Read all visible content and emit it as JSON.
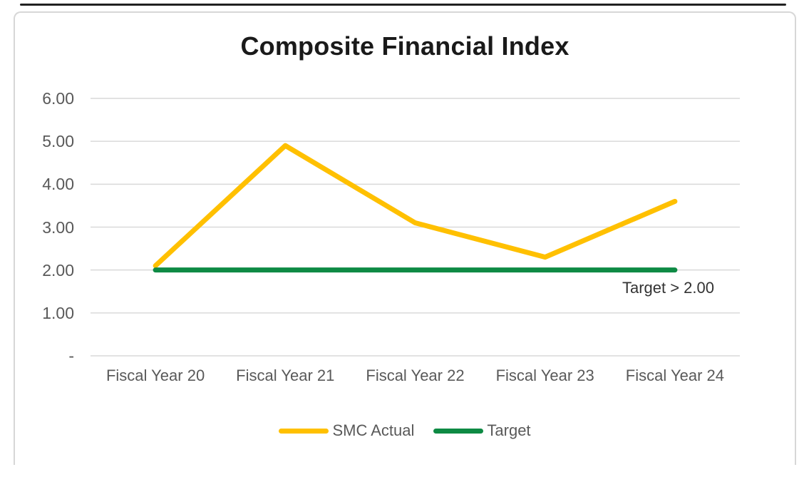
{
  "chart": {
    "title": "Composite Financial Index",
    "annotation": "Target > 2.00",
    "colors": {
      "smc_actual": "#FFC000",
      "target": "#0E8A44",
      "gridline": "#D9D9D9",
      "axis_label": "#595959",
      "title_text": "#1A1A1A"
    }
  },
  "chart_data": {
    "type": "line",
    "title": "Composite Financial Index",
    "categories": [
      "Fiscal Year 20",
      "Fiscal Year 21",
      "Fiscal Year 22",
      "Fiscal Year 23",
      "Fiscal Year 24"
    ],
    "series": [
      {
        "name": "SMC Actual",
        "color": "#FFC000",
        "values": [
          2.1,
          4.9,
          3.1,
          2.3,
          3.6
        ]
      },
      {
        "name": "Target",
        "color": "#0E8A44",
        "values": [
          2.0,
          2.0,
          2.0,
          2.0,
          2.0
        ]
      }
    ],
    "xlabel": "",
    "ylabel": "",
    "ylim": [
      0,
      6
    ],
    "ytick_labels": [
      "-",
      "1.00",
      "2.00",
      "3.00",
      "4.00",
      "5.00",
      "6.00"
    ],
    "grid": true,
    "legend_position": "bottom",
    "annotation": "Target > 2.00"
  }
}
